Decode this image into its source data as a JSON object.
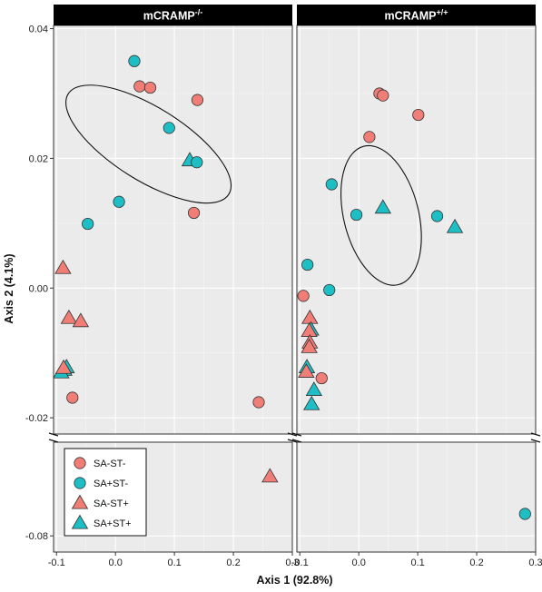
{
  "chart_data": {
    "type": "scatter",
    "xlabel": "Axis 1 (92.8%)",
    "ylabel": "Axis 2 (4.1%)",
    "x_ticks": [
      -0.1,
      0.0,
      0.1,
      0.2,
      0.3
    ],
    "x_tick_labels": [
      "-0.1",
      "0.0",
      "0.1",
      "0.2",
      "0.3"
    ],
    "y_ticks_upper": [
      -0.02,
      0.0,
      0.02,
      0.04
    ],
    "y_tick_labels_upper": [
      "-0.02",
      "0.00",
      "0.02",
      "0.04"
    ],
    "y_ticks_lower": [
      -0.08
    ],
    "y_tick_labels_lower": [
      "-0.08"
    ],
    "xlim": [
      -0.105,
      0.3
    ],
    "ylim_upper": [
      -0.0225,
      0.0405
    ],
    "ylim_lower": [
      -0.0825,
      -0.0655
    ],
    "y_axis_break": true,
    "grid": true,
    "legend_position": "bottom-left",
    "colors": {
      "SA-ST-": "#F07D76",
      "SA+ST-": "#1DBFC4",
      "SA-ST+": "#F07D76",
      "SA+ST+": "#1DBFC4"
    },
    "markers": {
      "SA-ST-": "circle",
      "SA+ST-": "circle",
      "SA-ST+": "triangle",
      "SA+ST+": "triangle"
    },
    "legend": [
      {
        "label": "SA-ST-",
        "color": "#F07D76",
        "marker": "circle"
      },
      {
        "label": "SA+ST-",
        "color": "#1DBFC4",
        "marker": "circle"
      },
      {
        "label": "SA-ST+",
        "color": "#F07D76",
        "marker": "triangle"
      },
      {
        "label": "SA+ST+",
        "color": "#1DBFC4",
        "marker": "triangle"
      }
    ],
    "panels": [
      {
        "title_base": "mCRAMP",
        "title_sup": "-/-",
        "ellipse": {
          "cx": 0.056,
          "cy": 0.0222,
          "rx": 0.124,
          "ry": 0.0146,
          "angle_deg": -58
        },
        "points": [
          {
            "group": "SA+ST-",
            "x": 0.032,
            "y": 0.035
          },
          {
            "group": "SA-ST-",
            "x": 0.041,
            "y": 0.0311
          },
          {
            "group": "SA-ST-",
            "x": 0.059,
            "y": 0.0309
          },
          {
            "group": "SA-ST-",
            "x": 0.139,
            "y": 0.029
          },
          {
            "group": "SA+ST-",
            "x": 0.091,
            "y": 0.0247
          },
          {
            "group": "SA+ST+",
            "x": 0.126,
            "y": 0.0197
          },
          {
            "group": "SA+ST-",
            "x": 0.138,
            "y": 0.0194
          },
          {
            "group": "SA+ST-",
            "x": 0.006,
            "y": 0.0133
          },
          {
            "group": "SA-ST-",
            "x": 0.133,
            "y": 0.0116
          },
          {
            "group": "SA+ST-",
            "x": -0.047,
            "y": 0.0099
          },
          {
            "group": "SA-ST+",
            "x": -0.089,
            "y": 0.0031
          },
          {
            "group": "SA-ST+",
            "x": -0.079,
            "y": -0.0046
          },
          {
            "group": "SA-ST+",
            "x": -0.059,
            "y": -0.0051
          },
          {
            "group": "SA+ST+",
            "x": -0.083,
            "y": -0.0122
          },
          {
            "group": "SA+ST+",
            "x": -0.087,
            "y": -0.0126
          },
          {
            "group": "SA+ST+",
            "x": -0.092,
            "y": -0.013
          },
          {
            "group": "SA-ST+",
            "x": -0.088,
            "y": -0.0123
          },
          {
            "group": "SA-ST-",
            "x": -0.073,
            "y": -0.0169
          },
          {
            "group": "SA-ST-",
            "x": 0.243,
            "y": -0.0176
          },
          {
            "group": "SA-ST+",
            "x": 0.262,
            "y": -0.0708
          }
        ]
      },
      {
        "title_base": "mCRAMP",
        "title_sup": "+/+",
        "ellipse": {
          "cx": 0.038,
          "cy": 0.0112,
          "rx": 0.127,
          "ry": 0.011,
          "angle_deg": -14
        },
        "points": [
          {
            "group": "SA-ST-",
            "x": 0.035,
            "y": 0.03
          },
          {
            "group": "SA-ST-",
            "x": 0.041,
            "y": 0.0297
          },
          {
            "group": "SA-ST-",
            "x": 0.101,
            "y": 0.0267
          },
          {
            "group": "SA-ST-",
            "x": 0.018,
            "y": 0.0233
          },
          {
            "group": "SA+ST-",
            "x": -0.046,
            "y": 0.016
          },
          {
            "group": "SA+ST+",
            "x": 0.041,
            "y": 0.0124
          },
          {
            "group": "SA+ST-",
            "x": -0.004,
            "y": 0.0113
          },
          {
            "group": "SA+ST-",
            "x": 0.133,
            "y": 0.0111
          },
          {
            "group": "SA+ST+",
            "x": 0.163,
            "y": 0.0094
          },
          {
            "group": "SA+ST-",
            "x": -0.087,
            "y": 0.0036
          },
          {
            "group": "SA+ST-",
            "x": -0.05,
            "y": -0.0003
          },
          {
            "group": "SA-ST-",
            "x": -0.094,
            "y": -0.0012
          },
          {
            "group": "SA-ST+",
            "x": -0.083,
            "y": -0.0046
          },
          {
            "group": "SA+ST+",
            "x": -0.081,
            "y": -0.0064
          },
          {
            "group": "SA-ST+",
            "x": -0.084,
            "y": -0.0066
          },
          {
            "group": "SA-ST+",
            "x": -0.083,
            "y": -0.0084
          },
          {
            "group": "SA-ST+",
            "x": -0.084,
            "y": -0.0091
          },
          {
            "group": "SA+ST+",
            "x": -0.088,
            "y": -0.0122
          },
          {
            "group": "SA-ST+",
            "x": -0.089,
            "y": -0.0129
          },
          {
            "group": "SA-ST-",
            "x": -0.063,
            "y": -0.0139
          },
          {
            "group": "SA+ST+",
            "x": -0.076,
            "y": -0.0157
          },
          {
            "group": "SA+ST+",
            "x": -0.08,
            "y": -0.0179
          },
          {
            "group": "SA+ST-",
            "x": 0.282,
            "y": -0.0766
          }
        ]
      }
    ]
  }
}
